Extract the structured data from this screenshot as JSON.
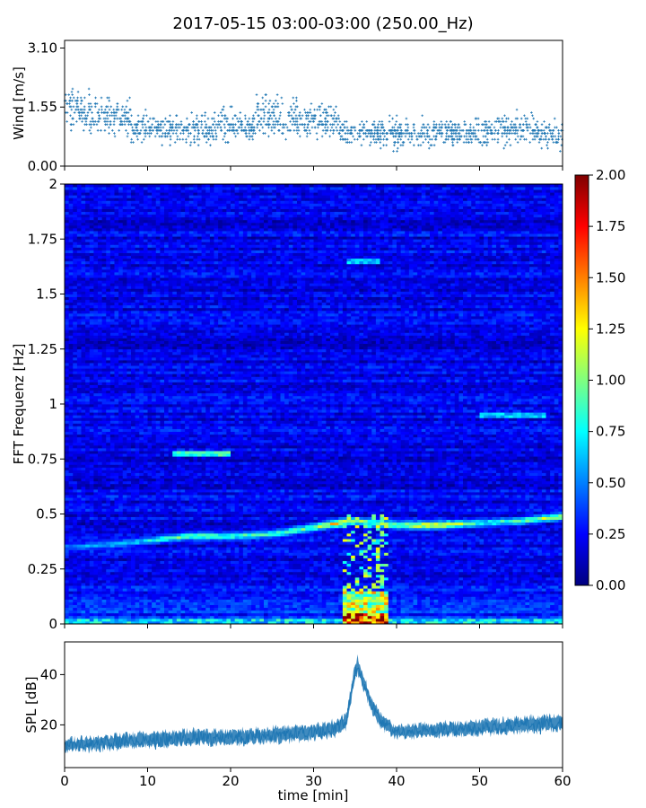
{
  "title": "2017-05-15 03:00-03:00 (250.00_Hz)",
  "chart_data": [
    {
      "type": "scatter",
      "panel": "wind",
      "ylabel": "Wind [m/s]",
      "ylim": [
        0,
        3.3
      ],
      "yticks": [
        "0.00",
        "1.55",
        "3.10"
      ],
      "ytick_values": [
        0,
        1.55,
        3.1
      ],
      "xlim": [
        0,
        60
      ],
      "color": "#1f77b4",
      "segments": [
        {
          "x": [
            0,
            3
          ],
          "mean": 1.5,
          "spread": 0.7
        },
        {
          "x": [
            3,
            8
          ],
          "mean": 1.3,
          "spread": 0.65
        },
        {
          "x": [
            8,
            13
          ],
          "mean": 1.0,
          "spread": 0.5
        },
        {
          "x": [
            13,
            18
          ],
          "mean": 0.95,
          "spread": 0.55
        },
        {
          "x": [
            18,
            23
          ],
          "mean": 1.05,
          "spread": 0.6
        },
        {
          "x": [
            23,
            28
          ],
          "mean": 1.3,
          "spread": 0.7
        },
        {
          "x": [
            28,
            33
          ],
          "mean": 1.2,
          "spread": 0.6
        },
        {
          "x": [
            33,
            38
          ],
          "mean": 0.9,
          "spread": 0.45
        },
        {
          "x": [
            38,
            45
          ],
          "mean": 0.85,
          "spread": 0.5
        },
        {
          "x": [
            45,
            52
          ],
          "mean": 0.9,
          "spread": 0.45
        },
        {
          "x": [
            52,
            57
          ],
          "mean": 0.95,
          "spread": 0.55
        },
        {
          "x": [
            57,
            60
          ],
          "mean": 0.8,
          "spread": 0.45
        }
      ]
    },
    {
      "type": "heatmap",
      "panel": "spectrogram",
      "ylabel": "FFT Frequenz [Hz]",
      "ylim": [
        0,
        2
      ],
      "yticks": [
        "0",
        "0.25",
        "0.5",
        "0.75",
        "1",
        "1.25",
        "1.5",
        "1.75",
        "2"
      ],
      "ytick_values": [
        0,
        0.25,
        0.5,
        0.75,
        1,
        1.25,
        1.5,
        1.75,
        2
      ],
      "xlim": [
        0,
        60
      ],
      "colormap": "jet",
      "vmin": 0,
      "vmax": 2,
      "colorbar_ticks": [
        "0.00",
        "0.25",
        "0.50",
        "0.75",
        "1.00",
        "1.25",
        "1.50",
        "1.75",
        "2.00"
      ],
      "colorbar_values": [
        0,
        0.25,
        0.5,
        0.75,
        1,
        1.25,
        1.5,
        1.75,
        2
      ],
      "background_level": 0.22,
      "ridge": {
        "x": [
          0,
          5,
          10,
          15,
          20,
          25,
          30,
          33,
          35,
          40,
          45,
          50,
          55,
          60
        ],
        "freq": [
          0.35,
          0.36,
          0.38,
          0.4,
          0.4,
          0.41,
          0.44,
          0.46,
          0.47,
          0.45,
          0.45,
          0.46,
          0.47,
          0.49
        ],
        "level": [
          0.6,
          0.7,
          0.8,
          1.1,
          1.0,
          0.95,
          1.1,
          1.5,
          1.0,
          1.2,
          1.5,
          0.9,
          1.0,
          1.3
        ]
      },
      "faint_lines": [
        {
          "x": [
            13,
            20
          ],
          "freq": 0.78,
          "level": 0.9
        },
        {
          "x": [
            50,
            58
          ],
          "freq": 0.95,
          "level": 0.7
        },
        {
          "x": [
            34,
            38
          ],
          "freq": 1.65,
          "level": 0.7
        }
      ],
      "hot_spots": [
        {
          "x": [
            33.5,
            39
          ],
          "freq": [
            0.0,
            0.05
          ],
          "level": 2.0
        },
        {
          "x": [
            33.5,
            39
          ],
          "freq": [
            0.05,
            0.15
          ],
          "level": 1.3
        },
        {
          "x": [
            0,
            60
          ],
          "freq": [
            0.0,
            0.03
          ],
          "level": 0.8
        }
      ]
    },
    {
      "type": "line",
      "panel": "spl",
      "ylabel": "SPL [dB]",
      "xlabel": "time [min]",
      "xlim": [
        0,
        60
      ],
      "ylim": [
        3,
        53
      ],
      "yticks": [
        "20",
        "40"
      ],
      "ytick_values": [
        20,
        40
      ],
      "xticks": [
        "0",
        "10",
        "20",
        "30",
        "40",
        "50",
        "60"
      ],
      "xtick_values": [
        0,
        10,
        20,
        30,
        40,
        50,
        60
      ],
      "color": "#1f77b4",
      "x": [
        0,
        5,
        10,
        15,
        20,
        25,
        30,
        33,
        34,
        34.8,
        35.3,
        36,
        37,
        38,
        40,
        45,
        50,
        55,
        60
      ],
      "y": [
        12,
        13,
        14,
        15,
        15,
        16,
        17,
        19,
        22,
        38,
        44,
        37,
        28,
        22,
        17,
        18,
        19,
        20,
        21
      ],
      "band": [
        4,
        5,
        5,
        5,
        5,
        5,
        5,
        5,
        5,
        6,
        6,
        5,
        5,
        5,
        4,
        5,
        5,
        5,
        5
      ]
    }
  ]
}
